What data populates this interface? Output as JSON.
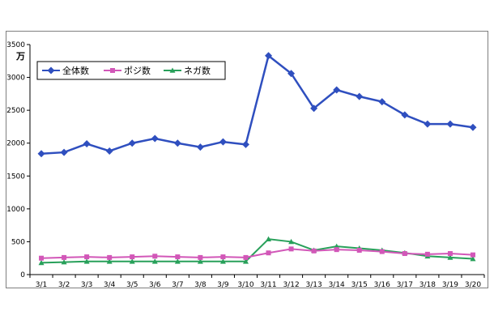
{
  "chart_data": {
    "type": "line",
    "categories": [
      "3/1",
      "3/2",
      "3/3",
      "3/4",
      "3/5",
      "3/6",
      "3/7",
      "3/8",
      "3/9",
      "3/10",
      "3/11",
      "3/12",
      "3/13",
      "3/14",
      "3/15",
      "3/16",
      "3/17",
      "3/18",
      "3/19",
      "3/20"
    ],
    "ylim": [
      0,
      3500
    ],
    "yticks": [
      0,
      500,
      1000,
      1500,
      2000,
      2500,
      3000,
      3500
    ],
    "unit_label": "万",
    "legend_position": "top-left",
    "grid": false,
    "series": [
      {
        "name": "全体数",
        "color": "#2f4fbf",
        "marker": "diamond",
        "values": [
          1840,
          1860,
          1990,
          1880,
          2000,
          2070,
          2000,
          1940,
          2020,
          1980,
          3330,
          3060,
          2530,
          2810,
          2710,
          2630,
          2430,
          2290,
          2290,
          2240
        ]
      },
      {
        "name": "ポジ数",
        "color": "#d257b8",
        "marker": "square",
        "values": [
          250,
          260,
          270,
          260,
          270,
          280,
          270,
          260,
          270,
          260,
          330,
          390,
          360,
          380,
          370,
          350,
          320,
          310,
          320,
          300
        ]
      },
      {
        "name": "ネガ数",
        "color": "#28a05a",
        "marker": "triangle",
        "values": [
          180,
          190,
          200,
          200,
          200,
          200,
          200,
          200,
          200,
          200,
          540,
          500,
          370,
          430,
          400,
          370,
          330,
          280,
          260,
          240
        ]
      }
    ]
  }
}
